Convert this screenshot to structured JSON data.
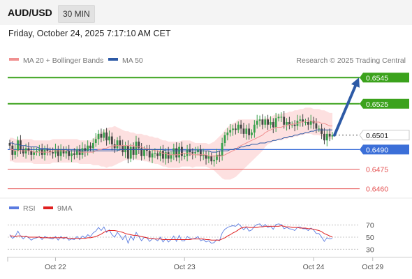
{
  "header": {
    "pair": "AUD/USD",
    "interval": "30 MIN"
  },
  "datetime": "Friday, October 24, 2025 7:17:10 AM CET",
  "legend": {
    "bollinger": "MA 20 + Bollinger Bands",
    "ma50": "MA 50",
    "credit": "Research © 2025 Trading Central"
  },
  "rsi_legend": {
    "rsi": "RSI",
    "ma9": "9MA"
  },
  "colors": {
    "up": "#37a04a",
    "down": "#444444",
    "resistance": "#3ba21c",
    "support": "#e45050",
    "pivot": "#3b6fd8",
    "current": "#333333",
    "arrow": "#2d5aa6",
    "band": "#fcd6d6",
    "ma20": "#f09090",
    "ma50": "#2d5aa6",
    "rsi": "#5a7be0",
    "rsi_ma": "#e02020"
  },
  "chart_data": [
    {
      "type": "candlestick",
      "title": "",
      "xlabel": "",
      "ylabel": "",
      "ylim": [
        0.6455,
        0.6551
      ],
      "x_ticks": [
        {
          "label": "Oct 22",
          "index": 17
        },
        {
          "label": "Oct 23",
          "index": 65
        },
        {
          "label": "Oct 24",
          "index": 113
        },
        {
          "label": "Oct 29",
          "index": 135
        }
      ],
      "levels": [
        {
          "value": 0.6545,
          "label": "0.6545",
          "kind": "resistance"
        },
        {
          "value": 0.6525,
          "label": "0.6525",
          "kind": "resistance"
        },
        {
          "value": 0.6501,
          "label": "0.6501",
          "kind": "current"
        },
        {
          "value": 0.649,
          "label": "0.6490",
          "kind": "pivot"
        },
        {
          "value": 0.6475,
          "label": "0.6475",
          "kind": "support"
        },
        {
          "value": 0.646,
          "label": "0.6460",
          "kind": "support"
        }
      ],
      "forecast_arrow": {
        "from": 0.6501,
        "to": 0.6545
      },
      "closes": [
        0.6493,
        0.6486,
        0.6489,
        0.6497,
        0.649,
        0.6487,
        0.6491,
        0.6489,
        0.6486,
        0.6488,
        0.6489,
        0.649,
        0.6486,
        0.649,
        0.6489,
        0.6488,
        0.6487,
        0.649,
        0.6485,
        0.649,
        0.6487,
        0.6489,
        0.6485,
        0.6487,
        0.6486,
        0.649,
        0.6486,
        0.6491,
        0.6489,
        0.6493,
        0.6491,
        0.6495,
        0.6498,
        0.6502,
        0.6499,
        0.6503,
        0.6497,
        0.65,
        0.6494,
        0.6491,
        0.6497,
        0.6493,
        0.6488,
        0.6493,
        0.6483,
        0.6492,
        0.6486,
        0.6496,
        0.6491,
        0.6485,
        0.649,
        0.6489,
        0.6484,
        0.6487,
        0.6487,
        0.6485,
        0.6489,
        0.6483,
        0.6488,
        0.6483,
        0.6486,
        0.6491,
        0.6484,
        0.6492,
        0.6485,
        0.6485,
        0.649,
        0.6488,
        0.6487,
        0.6488,
        0.649,
        0.6485,
        0.6486,
        0.6483,
        0.6485,
        0.6481,
        0.6482,
        0.6486,
        0.6485,
        0.6495,
        0.6501,
        0.6503,
        0.6505,
        0.6506,
        0.6505,
        0.6509,
        0.6506,
        0.6502,
        0.6506,
        0.6501,
        0.6503,
        0.6509,
        0.6512,
        0.6513,
        0.6509,
        0.6513,
        0.6509,
        0.6511,
        0.6507,
        0.6514,
        0.6515,
        0.6515,
        0.6509,
        0.6511,
        0.6509,
        0.6509,
        0.6508,
        0.6512,
        0.6513,
        0.6511,
        0.6511,
        0.6509,
        0.6512,
        0.651,
        0.6506,
        0.6506,
        0.6502,
        0.6497,
        0.6502,
        0.65,
        0.6501
      ],
      "ma20": [
        0.649,
        0.649,
        0.6489,
        0.6489,
        0.6489,
        0.6489,
        0.6489,
        0.6489,
        0.6489,
        0.6488,
        0.6488,
        0.6488,
        0.6488,
        0.6488,
        0.6488,
        0.6488,
        0.6489,
        0.6489,
        0.6489,
        0.6489,
        0.6489,
        0.6489,
        0.6489,
        0.6489,
        0.6489,
        0.6489,
        0.6488,
        0.6488,
        0.6488,
        0.6488,
        0.6488,
        0.6488,
        0.6489,
        0.649,
        0.649,
        0.6491,
        0.6491,
        0.6492,
        0.6492,
        0.6493,
        0.6493,
        0.6493,
        0.6493,
        0.6493,
        0.6493,
        0.6493,
        0.6493,
        0.6492,
        0.6492,
        0.6492,
        0.6491,
        0.6491,
        0.649,
        0.649,
        0.6489,
        0.6489,
        0.6488,
        0.6487,
        0.6487,
        0.6486,
        0.6486,
        0.6486,
        0.6486,
        0.6486,
        0.6487,
        0.6487,
        0.6487,
        0.6487,
        0.6486,
        0.6486,
        0.6486,
        0.6486,
        0.6486,
        0.6486,
        0.6485,
        0.6485,
        0.6485,
        0.6485,
        0.6485,
        0.6485,
        0.6486,
        0.6487,
        0.6488,
        0.6489,
        0.649,
        0.6492,
        0.6493,
        0.6494,
        0.6495,
        0.6496,
        0.6497,
        0.6498,
        0.6499,
        0.65,
        0.6501,
        0.6503,
        0.6504,
        0.6505,
        0.6506,
        0.6507,
        0.6507,
        0.6507,
        0.6508,
        0.6508,
        0.6509,
        0.6509,
        0.651,
        0.651,
        0.6511,
        0.6511,
        0.6512,
        0.6512,
        0.6512,
        0.6511,
        0.6511,
        0.6511,
        0.651,
        0.651,
        0.6509,
        0.6508,
        0.6508
      ],
      "ma50": [
        0.6495,
        0.6495,
        0.6494,
        0.6494,
        0.6493,
        0.6493,
        0.6493,
        0.6492,
        0.6492,
        0.6492,
        0.6492,
        0.6491,
        0.6491,
        0.6491,
        0.6491,
        0.649,
        0.649,
        0.649,
        0.649,
        0.649,
        0.649,
        0.649,
        0.6489,
        0.6489,
        0.6489,
        0.6489,
        0.6489,
        0.6489,
        0.6489,
        0.6489,
        0.6489,
        0.6489,
        0.6489,
        0.6489,
        0.6489,
        0.6489,
        0.6489,
        0.6489,
        0.6489,
        0.6489,
        0.6489,
        0.649,
        0.649,
        0.649,
        0.649,
        0.649,
        0.649,
        0.649,
        0.649,
        0.649,
        0.649,
        0.649,
        0.649,
        0.649,
        0.649,
        0.649,
        0.649,
        0.649,
        0.6489,
        0.6489,
        0.6489,
        0.6489,
        0.6489,
        0.6489,
        0.6489,
        0.6489,
        0.6489,
        0.6489,
        0.6489,
        0.6489,
        0.6489,
        0.6489,
        0.6489,
        0.6489,
        0.6489,
        0.6488,
        0.6488,
        0.6488,
        0.6489,
        0.6489,
        0.6489,
        0.6489,
        0.649,
        0.649,
        0.6491,
        0.6491,
        0.6492,
        0.6492,
        0.6493,
        0.6493,
        0.6494,
        0.6494,
        0.6494,
        0.6495,
        0.6495,
        0.6495,
        0.6496,
        0.6496,
        0.6497,
        0.6497,
        0.6498,
        0.6498,
        0.6499,
        0.6499,
        0.65,
        0.65,
        0.6501,
        0.6501,
        0.6502,
        0.6502,
        0.6503,
        0.6503,
        0.6504,
        0.6504,
        0.6505,
        0.6505,
        0.6505,
        0.6505,
        0.6505,
        0.6505,
        0.6505
      ],
      "bb_width": [
        0.0009,
        0.0009,
        0.0009,
        0.0009,
        0.0009,
        0.0009,
        0.0009,
        0.0009,
        0.0009,
        0.0009,
        0.0009,
        0.0009,
        0.0009,
        0.0009,
        0.0009,
        0.0009,
        0.0009,
        0.0009,
        0.0009,
        0.0009,
        0.0009,
        0.0009,
        0.0009,
        0.0009,
        0.0009,
        0.0009,
        0.0009,
        0.0009,
        0.0009,
        0.0009,
        0.0009,
        0.001,
        0.0011,
        0.0012,
        0.0013,
        0.0014,
        0.0015,
        0.0015,
        0.0015,
        0.0015,
        0.0014,
        0.0013,
        0.0012,
        0.0011,
        0.0011,
        0.001,
        0.001,
        0.001,
        0.001,
        0.001,
        0.001,
        0.001,
        0.001,
        0.001,
        0.001,
        0.001,
        0.001,
        0.001,
        0.001,
        0.001,
        0.001,
        0.001,
        0.001,
        0.001,
        0.001,
        0.001,
        0.001,
        0.001,
        0.001,
        0.0009,
        0.0009,
        0.0009,
        0.0009,
        0.0009,
        0.0009,
        0.001,
        0.0011,
        0.0013,
        0.0015,
        0.0017,
        0.0019,
        0.002,
        0.0021,
        0.0021,
        0.0021,
        0.0021,
        0.002,
        0.0019,
        0.0018,
        0.0017,
        0.0016,
        0.0015,
        0.0014,
        0.0013,
        0.0012,
        0.0011,
        0.001,
        0.001,
        0.001,
        0.001,
        0.001,
        0.001,
        0.001,
        0.001,
        0.001,
        0.001,
        0.001,
        0.001,
        0.001,
        0.001,
        0.001,
        0.001,
        0.001,
        0.001,
        0.001,
        0.001,
        0.001,
        0.001,
        0.001,
        0.001,
        0.001
      ]
    },
    {
      "type": "line",
      "title": "",
      "ylim": [
        20,
        80
      ],
      "y_ticks": [
        30,
        50,
        70
      ],
      "series": [
        {
          "name": "RSI",
          "values": [
            54,
            48,
            51,
            60,
            52,
            47,
            52,
            49,
            45,
            48,
            49,
            51,
            46,
            51,
            49,
            48,
            47,
            51,
            45,
            51,
            47,
            50,
            45,
            47,
            46,
            51,
            46,
            52,
            49,
            54,
            51,
            57,
            60,
            66,
            61,
            67,
            58,
            62,
            54,
            50,
            58,
            53,
            46,
            53,
            40,
            52,
            45,
            58,
            51,
            44,
            50,
            49,
            43,
            47,
            47,
            44,
            50,
            42,
            48,
            42,
            46,
            52,
            43,
            53,
            44,
            44,
            51,
            48,
            47,
            48,
            51,
            44,
            46,
            42,
            44,
            40,
            41,
            46,
            44,
            57,
            63,
            66,
            68,
            69,
            68,
            72,
            68,
            62,
            67,
            60,
            62,
            68,
            71,
            72,
            67,
            71,
            66,
            68,
            63,
            71,
            72,
            71,
            64,
            66,
            64,
            63,
            61,
            66,
            67,
            64,
            64,
            61,
            65,
            62,
            56,
            56,
            50,
            43,
            49,
            47,
            48
          ]
        },
        {
          "name": "9MA",
          "values": [
            52,
            52,
            51,
            52,
            52,
            51,
            51,
            50,
            50,
            50,
            50,
            50,
            49,
            49,
            49,
            49,
            49,
            49,
            49,
            49,
            49,
            49,
            48,
            48,
            48,
            48,
            48,
            48,
            48,
            49,
            49,
            50,
            51,
            53,
            55,
            58,
            60,
            61,
            61,
            61,
            60,
            59,
            58,
            56,
            55,
            54,
            53,
            53,
            52,
            51,
            50,
            49,
            48,
            48,
            47,
            47,
            47,
            46,
            46,
            46,
            46,
            46,
            46,
            46,
            46,
            46,
            46,
            46,
            47,
            47,
            47,
            47,
            47,
            46,
            46,
            45,
            45,
            45,
            45,
            47,
            49,
            52,
            54,
            57,
            59,
            62,
            65,
            66,
            67,
            66,
            66,
            66,
            66,
            67,
            67,
            68,
            68,
            68,
            68,
            68,
            68,
            69,
            68,
            67,
            67,
            66,
            66,
            66,
            65,
            65,
            65,
            64,
            64,
            63,
            62,
            61,
            59,
            56,
            54,
            52,
            50
          ]
        }
      ]
    }
  ]
}
